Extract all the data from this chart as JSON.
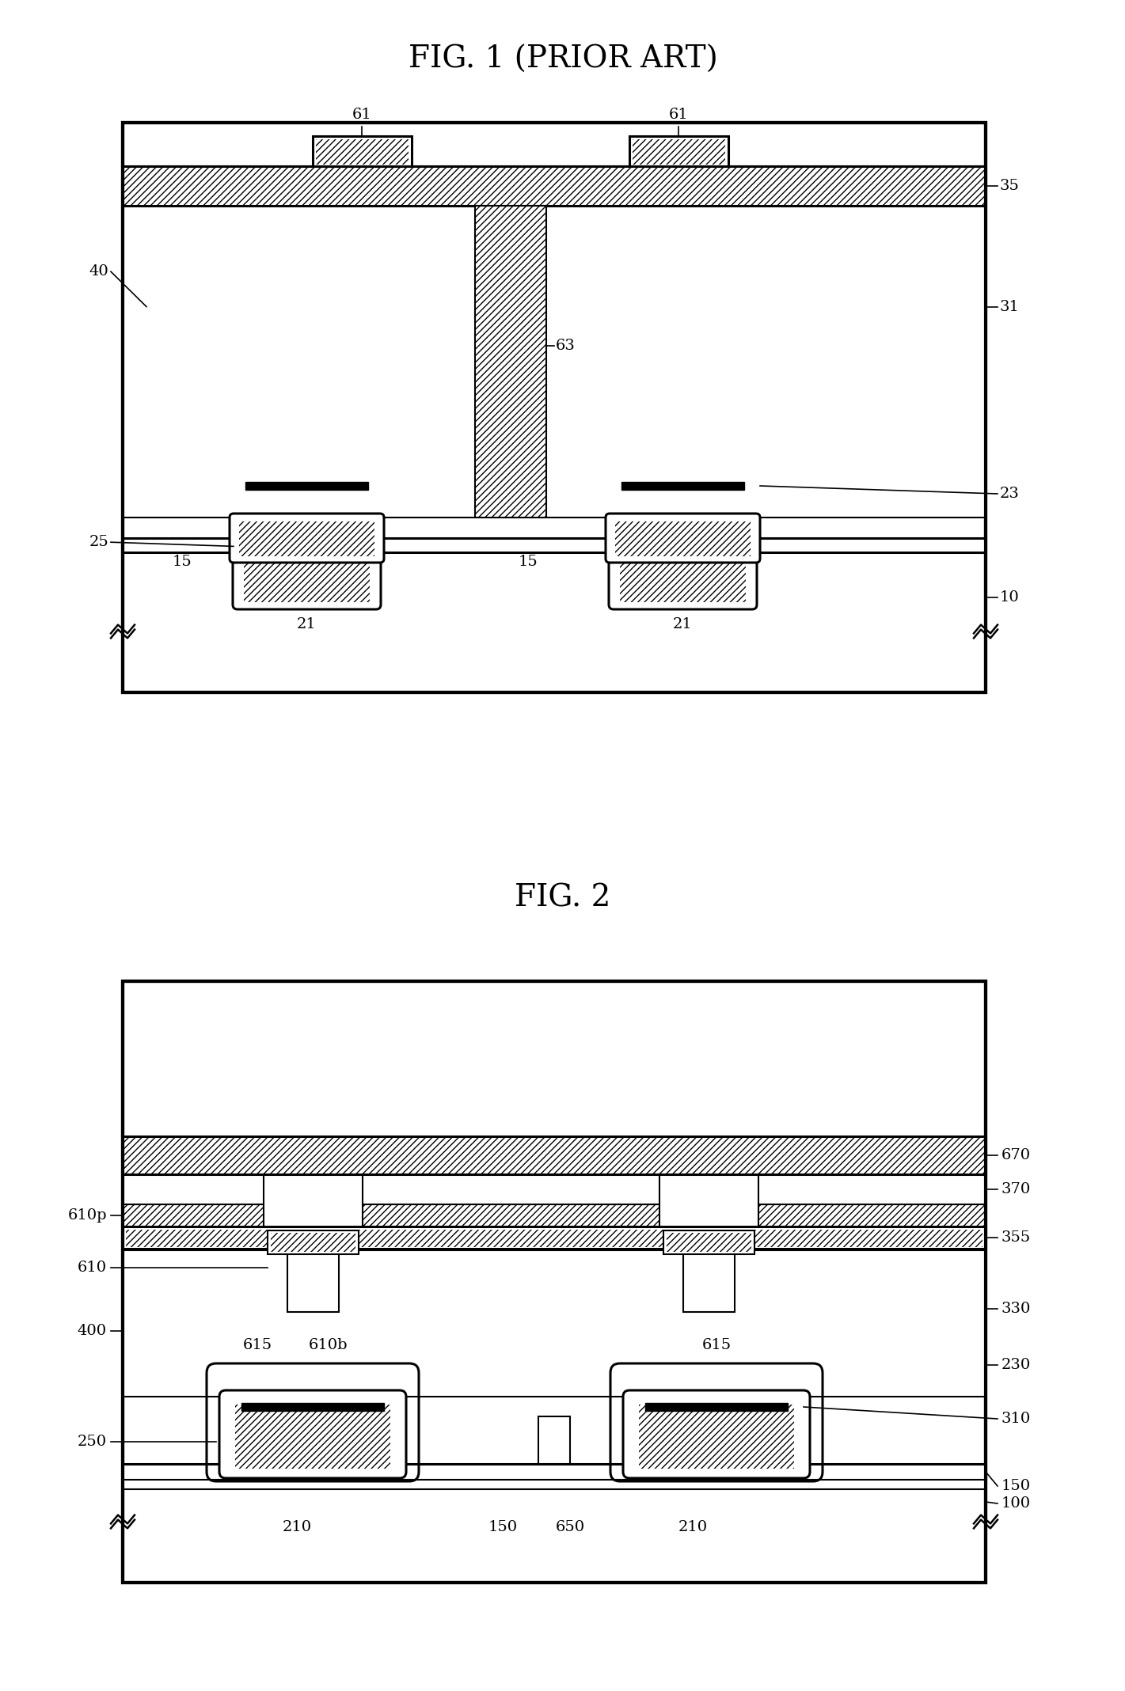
{
  "fig1_title": "FIG. 1 (PRIOR ART)",
  "fig2_title": "FIG. 2",
  "bg": "#ffffff",
  "lw": 1.5,
  "lw2": 2.2,
  "fs_title": 28,
  "fs_label": 14,
  "hatch": "////"
}
